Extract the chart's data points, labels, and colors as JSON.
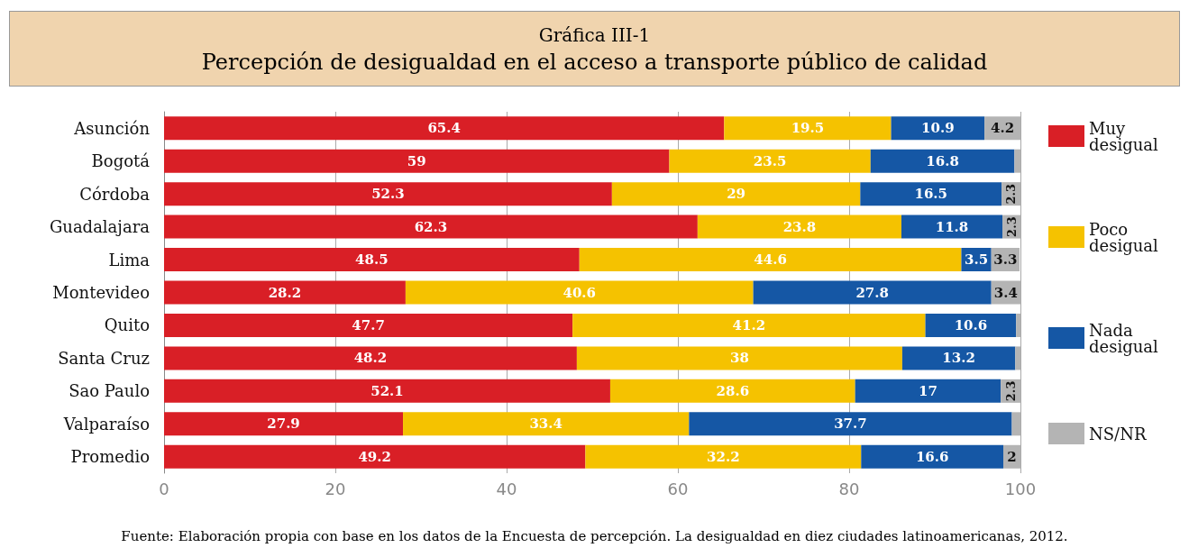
{
  "chart_data": {
    "type": "bar",
    "orientation": "horizontal",
    "stacked": true,
    "title": "Gráfica III-1",
    "subtitle": "Percepción de desigualdad en el acceso a transporte público de calidad",
    "categories": [
      "Asunción",
      "Bogotá",
      "Córdoba",
      "Guadalajara",
      "Lima",
      "Montevideo",
      "Quito",
      "Santa Cruz",
      "Sao Paulo",
      "Valparaíso",
      "Promedio"
    ],
    "series": [
      {
        "name": "Muy desigual",
        "color": "#d91f26",
        "values": [
          65.4,
          59,
          52.3,
          62.3,
          48.5,
          28.2,
          47.7,
          48.2,
          52.1,
          27.9,
          49.2
        ],
        "value_labels": [
          "65.4",
          "59",
          "52.3",
          "62.3",
          "48.5",
          "28.2",
          "47.7",
          "48.2",
          "52.1",
          "27.9",
          "49.2"
        ]
      },
      {
        "name": "Poco desigual",
        "color": "#f5c200",
        "values": [
          19.5,
          23.5,
          29,
          23.8,
          44.6,
          40.6,
          41.2,
          38,
          28.6,
          33.4,
          32.2
        ],
        "value_labels": [
          "19.5",
          "23.5",
          "29",
          "23.8",
          "44.6",
          "40.6",
          "41.2",
          "38",
          "28.6",
          "33.4",
          "32.2"
        ]
      },
      {
        "name": "Nada desigual",
        "color": "#1557a5",
        "values": [
          10.9,
          16.8,
          16.5,
          11.8,
          3.5,
          27.8,
          10.6,
          13.2,
          17,
          37.7,
          16.6
        ],
        "value_labels": [
          "10.9",
          "16.8",
          "16.5",
          "11.8",
          "3.5",
          "27.8",
          "10.6",
          "13.2",
          "17",
          "37.7",
          "16.6"
        ]
      },
      {
        "name": "NS/NR",
        "color": "#b4b4b4",
        "values": [
          4.2,
          0.7,
          2.3,
          2.3,
          3.3,
          3.4,
          0.5,
          0.6,
          2.3,
          1.0,
          2
        ],
        "value_labels": [
          "4.2",
          null,
          "2.3",
          "2.3",
          "3.3",
          "3.4",
          null,
          null,
          "2.3",
          null,
          "2"
        ]
      }
    ],
    "xlim": [
      0,
      100
    ],
    "xticks": [
      0,
      20,
      40,
      60,
      80,
      100
    ],
    "grid": "x",
    "legend": "right",
    "annotations": [
      "Fuente: Elaboración propia con base en los datos de la Encuesta de percepción. La desigualdad en diez ciudades latinoamericanas, 2012."
    ]
  }
}
